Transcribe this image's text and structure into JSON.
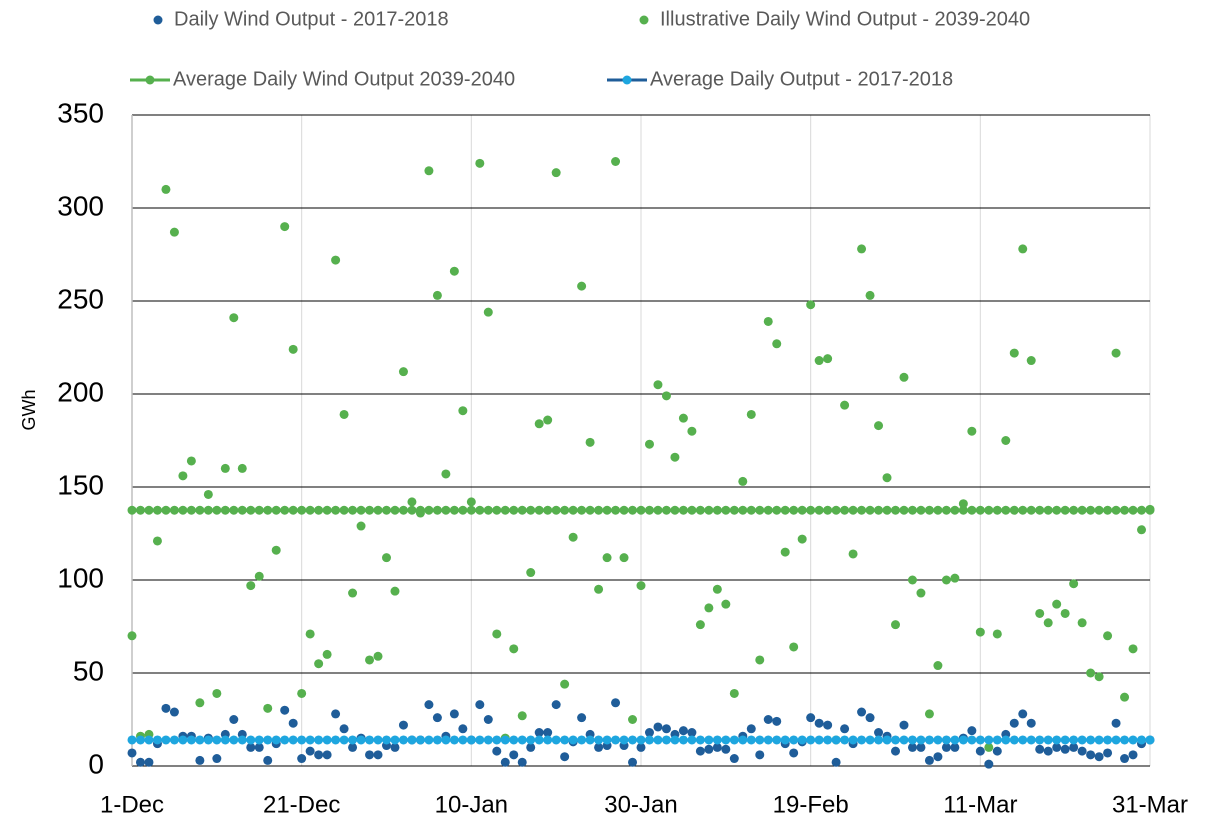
{
  "chart_data": {
    "type": "line",
    "y_label": "GWh",
    "categories": [
      "1-Dec",
      null,
      null,
      null,
      null,
      null,
      null,
      null,
      null,
      null,
      null,
      null,
      null,
      null,
      null,
      null,
      null,
      null,
      null,
      null,
      "21-Dec",
      null,
      null,
      null,
      null,
      null,
      null,
      null,
      null,
      null,
      null,
      null,
      null,
      null,
      null,
      null,
      null,
      null,
      null,
      null,
      "10-Jan",
      null,
      null,
      null,
      null,
      null,
      null,
      null,
      null,
      null,
      null,
      null,
      null,
      null,
      null,
      null,
      null,
      null,
      null,
      null,
      "30-Jan",
      null,
      null,
      null,
      null,
      null,
      null,
      null,
      null,
      null,
      null,
      null,
      null,
      null,
      null,
      null,
      null,
      null,
      null,
      null,
      "19-Feb",
      null,
      null,
      null,
      null,
      null,
      null,
      null,
      null,
      null,
      null,
      null,
      null,
      null,
      null,
      null,
      null,
      null,
      null,
      null,
      "11-Mar",
      null,
      null,
      null,
      null,
      null,
      null,
      null,
      null,
      null,
      null,
      null,
      null,
      null,
      null,
      null,
      null,
      null,
      null,
      null,
      "31-Mar"
    ],
    "ylim": [
      0,
      350
    ],
    "yticks": [
      0,
      50,
      100,
      150,
      200,
      250,
      300,
      350
    ],
    "grid": true,
    "series": [
      {
        "name": "Daily Wind Output - 2017-2018",
        "color": "#1f5d99",
        "style": "markers",
        "values": [
          7,
          2,
          2,
          12,
          31,
          29,
          16,
          16,
          3,
          15,
          4,
          17,
          25,
          17,
          10,
          10,
          3,
          12,
          30,
          23,
          4,
          8,
          6,
          6,
          28,
          20,
          10,
          15,
          6,
          6,
          11,
          10,
          22,
          14,
          14,
          33,
          26,
          16,
          28,
          20,
          14,
          33,
          25,
          8,
          2,
          6,
          2,
          10,
          18,
          18,
          33,
          5,
          13,
          26,
          17,
          10,
          11,
          34,
          11,
          2,
          10,
          18,
          21,
          20,
          17,
          19,
          18,
          8,
          9,
          10,
          9,
          4,
          16,
          20,
          6,
          25,
          24,
          12,
          7,
          13,
          26,
          23,
          22,
          2,
          20,
          12,
          29,
          26,
          18,
          16,
          8,
          22,
          10,
          10,
          3,
          5,
          10,
          10,
          15,
          19,
          8,
          1,
          8,
          17,
          23,
          28,
          23,
          9,
          8,
          10,
          9,
          10,
          8,
          6,
          5,
          7,
          23,
          4,
          6,
          12,
          14
        ]
      },
      {
        "name": "Illustrative Daily Wind Output - 2039-2040",
        "color": "#56b04e",
        "style": "markers",
        "values": [
          70,
          16,
          17,
          121,
          310,
          287,
          156,
          164,
          34,
          146,
          39,
          160,
          241,
          160,
          97,
          102,
          31,
          116,
          290,
          224,
          39,
          71,
          55,
          60,
          272,
          189,
          93,
          129,
          57,
          59,
          112,
          94,
          212,
          142,
          136,
          320,
          253,
          157,
          266,
          191,
          142,
          324,
          244,
          71,
          15,
          63,
          27,
          104,
          184,
          186,
          319,
          44,
          123,
          258,
          174,
          95,
          112,
          325,
          112,
          25,
          97,
          173,
          205,
          199,
          166,
          187,
          180,
          76,
          85,
          95,
          87,
          39,
          153,
          189,
          57,
          239,
          227,
          115,
          64,
          122,
          248,
          218,
          219,
          14,
          194,
          114,
          278,
          253,
          183,
          155,
          76,
          209,
          100,
          93,
          28,
          54,
          100,
          101,
          141,
          180,
          72,
          10,
          71,
          175,
          222,
          278,
          218,
          82,
          77,
          87,
          82,
          98,
          77,
          50,
          48,
          70,
          222,
          37,
          63,
          127,
          138
        ]
      },
      {
        "name": "Average Daily Wind Output 2039-2040",
        "color": "#56b04e",
        "style": "line",
        "values": [
          137.5,
          137.5,
          137.5,
          137.5,
          137.5,
          137.5,
          137.5,
          137.5,
          137.5,
          137.5,
          137.5,
          137.5,
          137.5,
          137.5,
          137.5,
          137.5,
          137.5,
          137.5,
          137.5,
          137.5,
          137.5,
          137.5,
          137.5,
          137.5,
          137.5,
          137.5,
          137.5,
          137.5,
          137.5,
          137.5,
          137.5,
          137.5,
          137.5,
          137.5,
          137.5,
          137.5,
          137.5,
          137.5,
          137.5,
          137.5,
          137.5,
          137.5,
          137.5,
          137.5,
          137.5,
          137.5,
          137.5,
          137.5,
          137.5,
          137.5,
          137.5,
          137.5,
          137.5,
          137.5,
          137.5,
          137.5,
          137.5,
          137.5,
          137.5,
          137.5,
          137.5,
          137.5,
          137.5,
          137.5,
          137.5,
          137.5,
          137.5,
          137.5,
          137.5,
          137.5,
          137.5,
          137.5,
          137.5,
          137.5,
          137.5,
          137.5,
          137.5,
          137.5,
          137.5,
          137.5,
          137.5,
          137.5,
          137.5,
          137.5,
          137.5,
          137.5,
          137.5,
          137.5,
          137.5,
          137.5,
          137.5,
          137.5,
          137.5,
          137.5,
          137.5,
          137.5,
          137.5,
          137.5,
          137.5,
          137.5,
          137.5,
          137.5,
          137.5,
          137.5,
          137.5,
          137.5,
          137.5,
          137.5,
          137.5,
          137.5,
          137.5,
          137.5,
          137.5,
          137.5,
          137.5,
          137.5,
          137.5,
          137.5,
          137.5,
          137.5,
          137.5
        ]
      },
      {
        "name": "Average Daily Output - 2017-2018",
        "color": "#1ea6df",
        "line_color": "#1f5d99",
        "style": "line",
        "values": [
          14,
          14,
          14,
          14,
          14,
          14,
          14,
          14,
          14,
          14,
          14,
          14,
          14,
          14,
          14,
          14,
          14,
          14,
          14,
          14,
          14,
          14,
          14,
          14,
          14,
          14,
          14,
          14,
          14,
          14,
          14,
          14,
          14,
          14,
          14,
          14,
          14,
          14,
          14,
          14,
          14,
          14,
          14,
          14,
          14,
          14,
          14,
          14,
          14,
          14,
          14,
          14,
          14,
          14,
          14,
          14,
          14,
          14,
          14,
          14,
          14,
          14,
          14,
          14,
          14,
          14,
          14,
          14,
          14,
          14,
          14,
          14,
          14,
          14,
          14,
          14,
          14,
          14,
          14,
          14,
          14,
          14,
          14,
          14,
          14,
          14,
          14,
          14,
          14,
          14,
          14,
          14,
          14,
          14,
          14,
          14,
          14,
          14,
          14,
          14,
          14,
          14,
          14,
          14,
          14,
          14,
          14,
          14,
          14,
          14,
          14,
          14,
          14,
          14,
          14,
          14,
          14,
          14,
          14,
          14,
          14
        ]
      }
    ]
  }
}
